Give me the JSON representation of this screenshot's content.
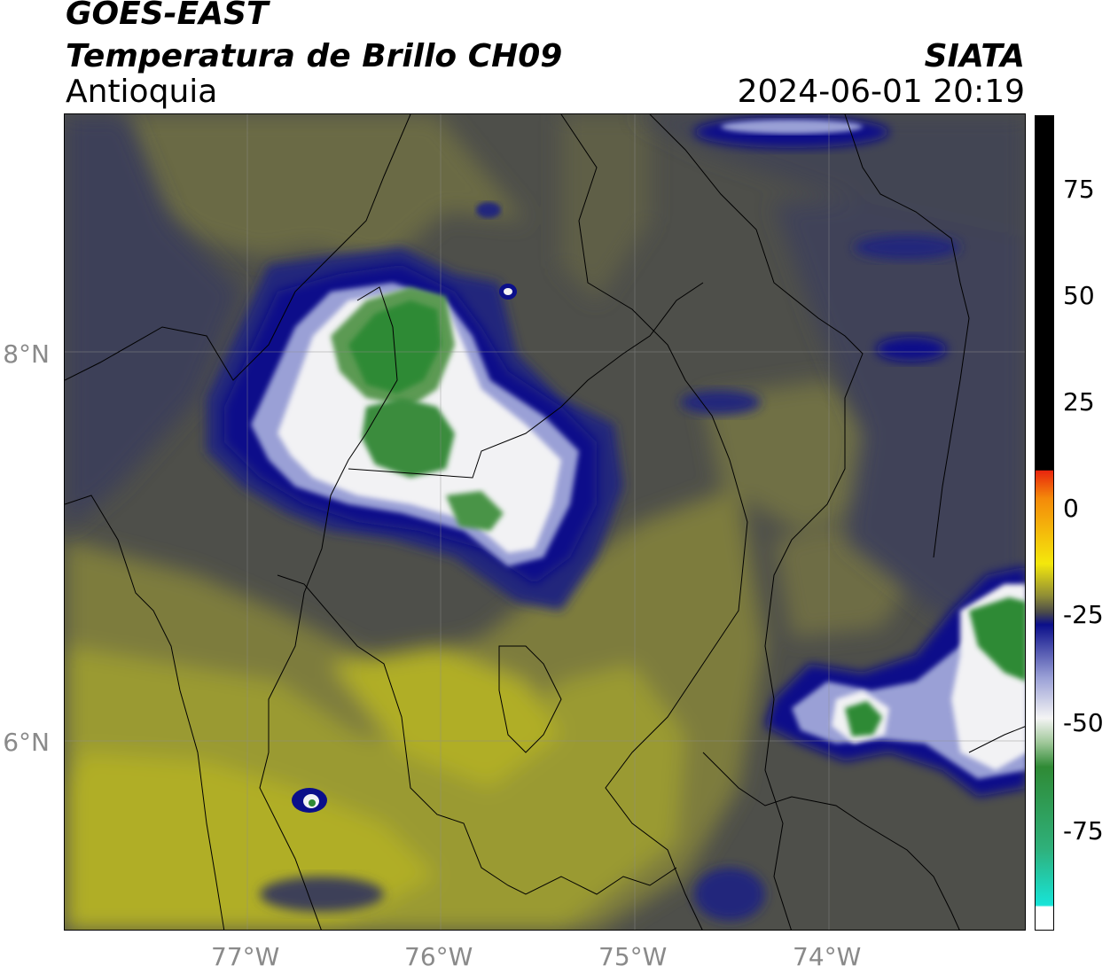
{
  "header": {
    "line1": "GOES-EAST",
    "line2": "Temperatura de Brillo CH09",
    "region": "Antioquia",
    "credit": "SIATA",
    "timestamp": "2024-06-01 20:19"
  },
  "map": {
    "lat_labels": [
      "8°N",
      "6°N"
    ],
    "lon_labels": [
      "77°W",
      "76°W",
      "75°W",
      "74°W"
    ]
  },
  "colorbar": {
    "ticks": [
      "75",
      "50",
      "25",
      "0",
      "-25",
      "-50",
      "-75"
    ],
    "range": [
      -95,
      92
    ],
    "colors": {
      "warm_black": "#000000",
      "red": "#e8260e",
      "orange": "#f48a0a",
      "yellow": "#f4e80c",
      "olive": "#8e8c36",
      "gray": "#4a4a4a",
      "navy": "#0b0f8a",
      "white": "#f4f4f4",
      "green": "#2f8a35",
      "cyan": "#17e4d8"
    }
  }
}
